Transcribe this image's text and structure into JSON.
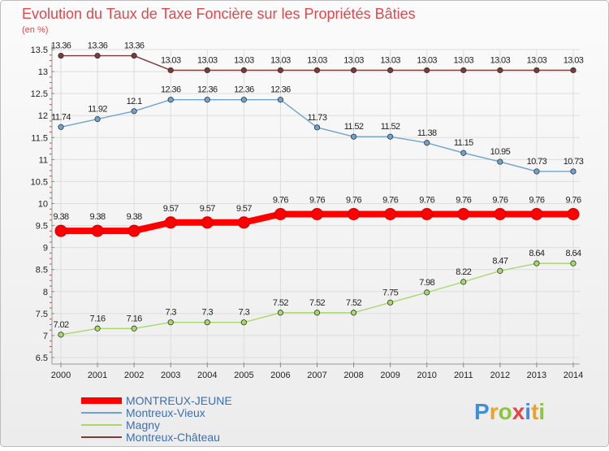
{
  "chart_data": {
    "type": "line",
    "title": "Evolution du Taux de Taxe Foncière sur les Propriétés Bâties",
    "ylabel": "(en %)",
    "xlabel": "",
    "ylim": [
      6.5,
      13.5
    ],
    "yticks": [
      "6.5",
      "7",
      "7.5",
      "8",
      "8.5",
      "9",
      "9.5",
      "10",
      "10.5",
      "11",
      "11.5",
      "12",
      "12.5",
      "13",
      "13.5"
    ],
    "x": [
      "2000",
      "2001",
      "2002",
      "2003",
      "2004",
      "2005",
      "2006",
      "2007",
      "2008",
      "2009",
      "2010",
      "2011",
      "2012",
      "2013",
      "2014"
    ],
    "grid": true,
    "series": [
      {
        "name": "MONTREUX-JEUNE",
        "color": "#ff0000",
        "values": [
          9.38,
          9.38,
          9.38,
          9.57,
          9.57,
          9.57,
          9.76,
          9.76,
          9.76,
          9.76,
          9.76,
          9.76,
          9.76,
          9.76,
          9.76
        ],
        "labels": [
          "9.38",
          "9.38",
          "9.38",
          "9.57",
          "9.57",
          "9.57",
          "9.76",
          "9.76",
          "9.76",
          "9.76",
          "9.76",
          "9.76",
          "9.76",
          "9.76",
          "9.76"
        ]
      },
      {
        "name": "Montreux-Vieux",
        "color": "#6fa3cf",
        "values": [
          11.74,
          11.92,
          12.1,
          12.36,
          12.36,
          12.36,
          12.36,
          11.73,
          11.52,
          11.52,
          11.38,
          11.15,
          10.95,
          10.73,
          10.73
        ],
        "labels": [
          "11.74",
          "11.92",
          "12.1",
          "12.36",
          "12.36",
          "12.36",
          "12.36",
          "11.73",
          "11.52",
          "11.52",
          "11.38",
          "11.15",
          "10.95",
          "10.73",
          "10.73"
        ]
      },
      {
        "name": "Magny",
        "color": "#a6d96a",
        "values": [
          7.02,
          7.16,
          7.16,
          7.3,
          7.3,
          7.3,
          7.52,
          7.52,
          7.52,
          7.75,
          7.98,
          8.22,
          8.47,
          8.64,
          8.64
        ],
        "labels": [
          "7.02",
          "7.16",
          "7.16",
          "7.3",
          "7.3",
          "7.3",
          "7.52",
          "7.52",
          "7.52",
          "7.75",
          "7.98",
          "8.22",
          "8.47",
          "8.64",
          "8.64"
        ]
      },
      {
        "name": "Montreux-Château",
        "color": "#7a3b3b",
        "values": [
          13.36,
          13.36,
          13.36,
          13.03,
          13.03,
          13.03,
          13.03,
          13.03,
          13.03,
          13.03,
          13.03,
          13.03,
          13.03,
          13.03,
          13.03
        ],
        "labels": [
          "13.36",
          "13.36",
          "13.36",
          "13.03",
          "13.03",
          "13.03",
          "13.03",
          "13.03",
          "13.03",
          "13.03",
          "13.03",
          "13.03",
          "13.03",
          "13.03",
          "13.03"
        ]
      }
    ],
    "legend_position": "bottom-left"
  },
  "branding": {
    "logo_text": "Proxiti"
  },
  "colors": {
    "title": "#e2474c",
    "axis_text": "#222222",
    "grid": "#dddddd",
    "background": "#f4f4f4"
  }
}
